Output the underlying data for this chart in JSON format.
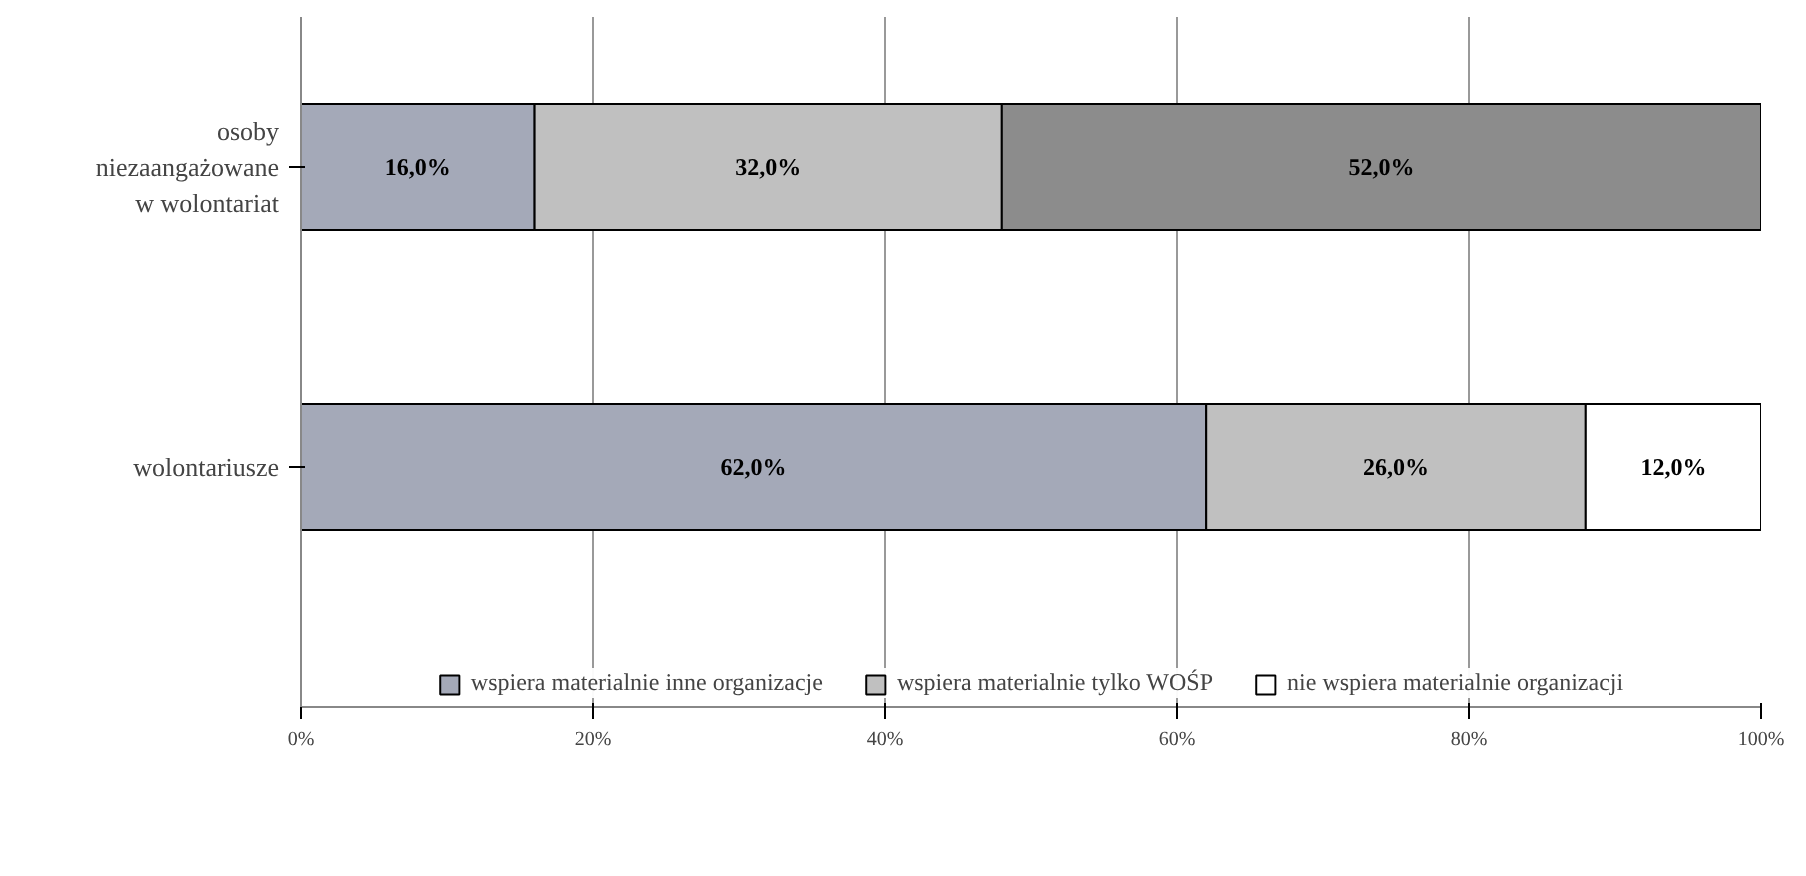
{
  "chart_data": {
    "type": "bar",
    "orientation": "horizontal",
    "stacked": true,
    "categories": [
      "osoby niezaangażowane w wolontariat",
      "wolontariusze"
    ],
    "series": [
      {
        "name": "wspiera materialnie inne organizacje",
        "color": "#a4a9b8",
        "values": [
          16.0,
          62.0
        ],
        "value_labels": [
          "16,0%",
          "62,0%"
        ]
      },
      {
        "name": "wspiera materialnie tylko WOŚP",
        "color": "#c0c0c0",
        "values": [
          32.0,
          26.0
        ],
        "value_labels": [
          "32,0%",
          "26,0%"
        ]
      },
      {
        "name": "nie wspiera materialnie organizacji",
        "color": "#ffffff",
        "colors": [
          "#8c8c8c",
          "#ffffff"
        ],
        "values": [
          52.0,
          12.0
        ],
        "value_labels": [
          "52,0%",
          "12,0%"
        ]
      }
    ],
    "xlim": [
      0,
      100
    ],
    "xticks": [
      {
        "value": 0,
        "label": "0%"
      },
      {
        "value": 20,
        "label": "20%"
      },
      {
        "value": 40,
        "label": "40%"
      },
      {
        "value": 60,
        "label": "60%"
      },
      {
        "value": 80,
        "label": "80%"
      },
      {
        "value": 100,
        "label": "100%"
      }
    ],
    "grid": "x",
    "legend": "bottom"
  }
}
